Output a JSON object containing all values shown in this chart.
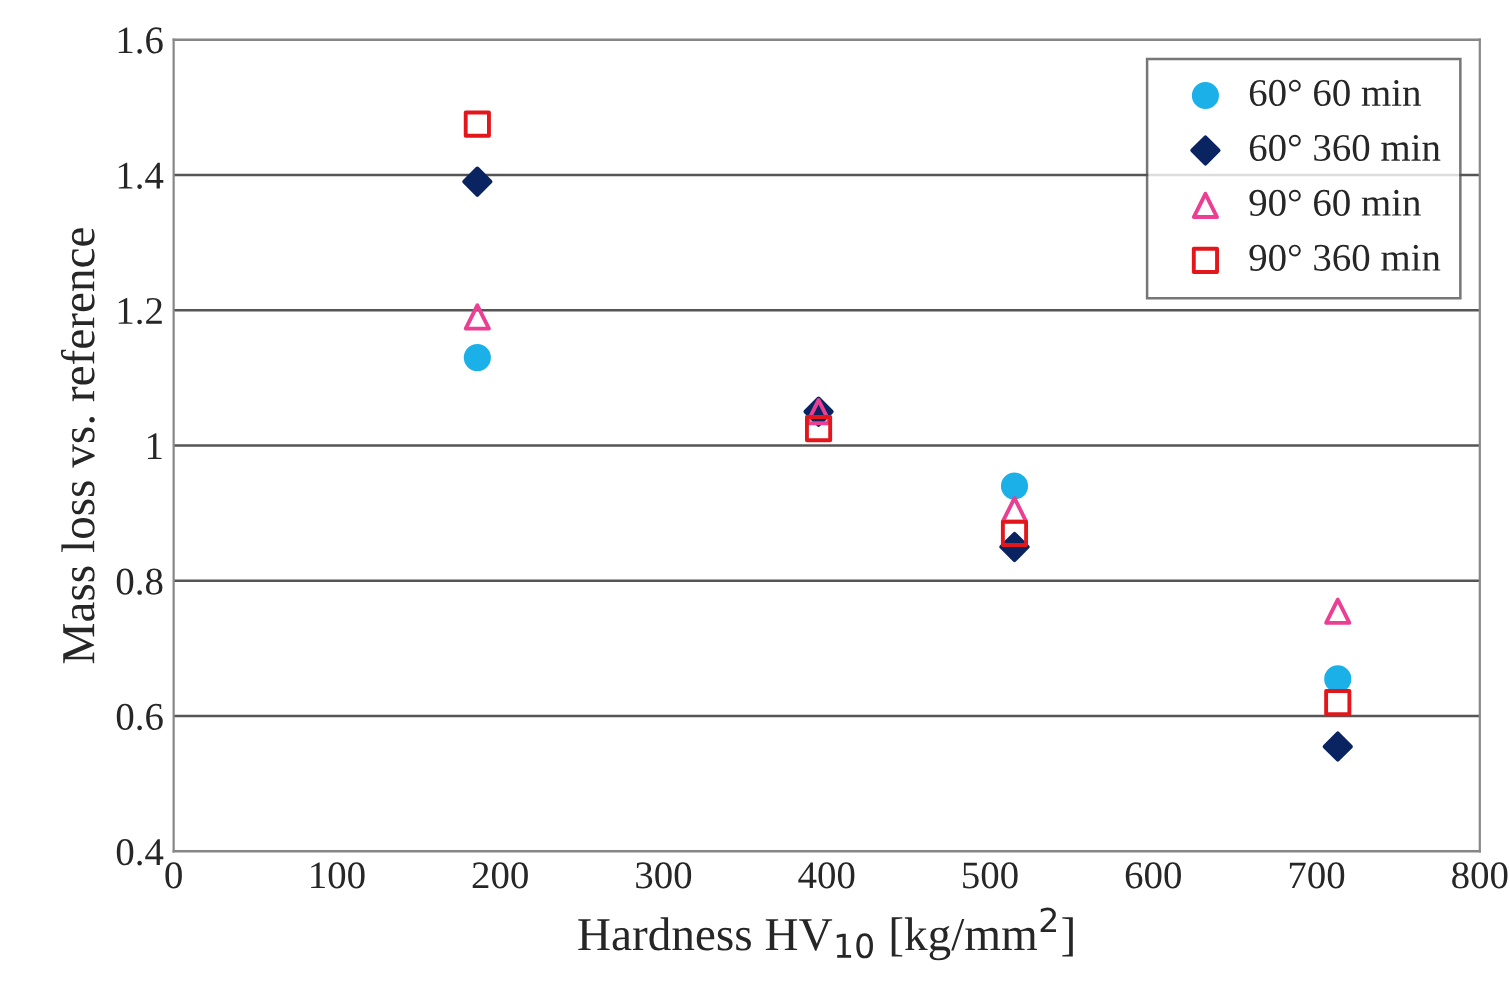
{
  "chart_data": {
    "type": "scatter",
    "xlabel": "Hardness HV$_{10}$ [kg/mm$^{2}$]",
    "ylabel": "Mass loss vs. reference",
    "x": [
      186,
      395,
      515,
      713
    ],
    "series": [
      {
        "name": "60° 60 min",
        "color": "#1cb0e8",
        "marker": "circle",
        "values": [
          1.13,
          null,
          0.94,
          0.655
        ]
      },
      {
        "name": "60° 360 min",
        "color": "#0a2461",
        "marker": "diamond",
        "values": [
          1.39,
          1.05,
          0.85,
          0.555
        ]
      },
      {
        "name": "90° 60 min",
        "color": "#ea3f93",
        "marker": "triangle",
        "values": [
          1.19,
          1.05,
          0.905,
          0.755
        ]
      },
      {
        "name": "90° 360 min",
        "color": "#e3161b",
        "marker": "square",
        "values": [
          1.475,
          1.025,
          0.87,
          0.62
        ]
      }
    ],
    "xlim": [
      0,
      800
    ],
    "xticks": [
      0,
      100,
      200,
      300,
      400,
      500,
      600,
      700,
      800
    ],
    "ylim": [
      0.4,
      1.6
    ],
    "yticks": [
      0.4,
      0.6,
      0.8,
      1,
      1.2,
      1.4,
      1.6
    ],
    "grid": "y",
    "legend": "top right"
  }
}
